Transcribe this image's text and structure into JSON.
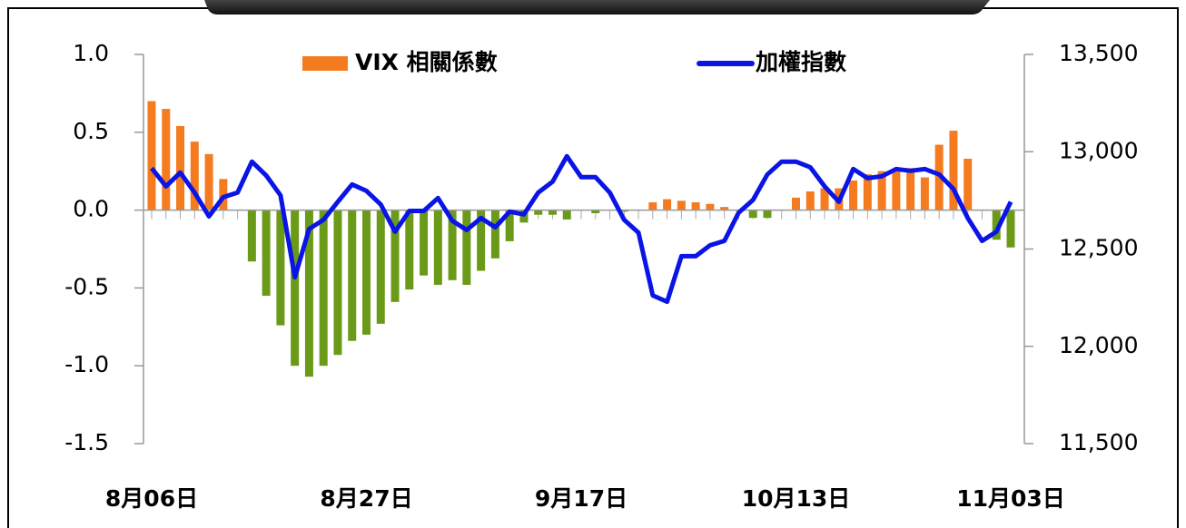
{
  "chart_data": {
    "type": "bar_line",
    "categories": [
      "8月06日",
      null,
      null,
      null,
      null,
      null,
      null,
      null,
      null,
      null,
      null,
      null,
      null,
      null,
      null,
      "8月27日",
      null,
      null,
      null,
      null,
      null,
      null,
      null,
      null,
      null,
      null,
      null,
      null,
      null,
      null,
      "9月17日",
      null,
      null,
      null,
      null,
      null,
      null,
      null,
      null,
      null,
      null,
      null,
      null,
      null,
      null,
      "10月13日",
      null,
      null,
      null,
      null,
      null,
      null,
      null,
      null,
      null,
      null,
      null,
      null,
      null,
      null,
      "11月03日"
    ],
    "series": [
      {
        "name": "VIX 相關係數",
        "type": "bar",
        "color": "#f47b20",
        "negative_color": "#6a9a18",
        "axis": "y",
        "values": [
          0.7,
          0.65,
          0.54,
          0.44,
          0.36,
          0.2,
          0.0,
          -0.33,
          -0.55,
          -0.74,
          -1.0,
          -1.07,
          -1.0,
          -0.93,
          -0.84,
          -0.8,
          -0.73,
          -0.59,
          -0.51,
          -0.42,
          -0.48,
          -0.45,
          -0.48,
          -0.39,
          -0.31,
          -0.2,
          -0.08,
          -0.03,
          -0.03,
          -0.06,
          0.0,
          -0.02,
          0.0,
          -0.01,
          0.0,
          0.05,
          0.07,
          0.06,
          0.05,
          0.04,
          0.02,
          0.0,
          -0.05,
          -0.05,
          0.0,
          0.08,
          0.12,
          0.14,
          0.14,
          0.19,
          0.23,
          0.25,
          0.26,
          0.27,
          0.21,
          0.42,
          0.51,
          0.33,
          0.0,
          -0.19,
          -0.24
        ]
      },
      {
        "name": "加權指數",
        "type": "line",
        "color": "#0a14e6",
        "axis": "y2",
        "values": [
          12916,
          12822,
          12893,
          12790,
          12668,
          12766,
          12790,
          12949,
          12878,
          12776,
          12355,
          12603,
          12650,
          12743,
          12832,
          12799,
          12729,
          12589,
          12696,
          12696,
          12762,
          12645,
          12598,
          12659,
          12612,
          12692,
          12678,
          12790,
          12846,
          12977,
          12869,
          12869,
          12790,
          12650,
          12584,
          12262,
          12229,
          12463,
          12463,
          12519,
          12542,
          12687,
          12752,
          12883,
          12949,
          12949,
          12920,
          12822,
          12743,
          12911,
          12864,
          12874,
          12911,
          12902,
          12911,
          12883,
          12808,
          12659,
          12542,
          12589,
          12743
        ]
      }
    ],
    "ylim": [
      -1.5,
      1.0
    ],
    "yticks": [
      {
        "value": 1.0,
        "label": "1.0"
      },
      {
        "value": 0.5,
        "label": "0.5"
      },
      {
        "value": 0.0,
        "label": "0.0"
      },
      {
        "value": -0.5,
        "label": "-0.5"
      },
      {
        "value": -1.0,
        "label": "-1.0"
      },
      {
        "value": -1.5,
        "label": "-1.5"
      }
    ],
    "negative_tick_color": "#ff0000",
    "y2lim": [
      11500,
      13500
    ],
    "y2ticks": [
      {
        "value": 13500,
        "label": "13,500"
      },
      {
        "value": 13000,
        "label": "13,000"
      },
      {
        "value": 12500,
        "label": "12,500"
      },
      {
        "value": 12000,
        "label": "12,000"
      },
      {
        "value": 11500,
        "label": "11,500"
      }
    ],
    "legend": "top"
  }
}
